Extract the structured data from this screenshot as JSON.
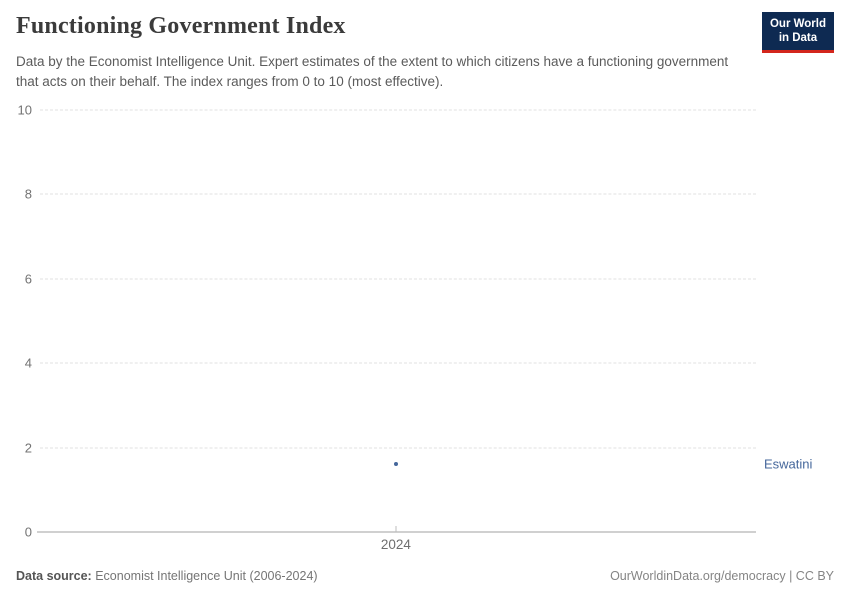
{
  "header": {
    "title": "Functioning Government Index",
    "subtitle": "Data by the Economist Intelligence Unit. Expert estimates of the extent to which citizens have a functioning government that acts on their behalf. The index ranges from 0 to 10 (most effective).",
    "logo_line1": "Our World",
    "logo_line2": "in Data"
  },
  "chart_data": {
    "type": "scatter",
    "title": "Functioning Government Index",
    "series": [
      {
        "name": "Eswatini",
        "x": [
          2024
        ],
        "values": [
          1.6
        ],
        "color": "#45679b"
      }
    ],
    "x": [
      2024
    ],
    "xticks": [
      2024
    ],
    "xtick_fracs": [
      0.497
    ],
    "yticks": [
      0,
      2,
      4,
      6,
      8,
      10
    ],
    "ylim": [
      0,
      10
    ],
    "grid": true,
    "xlabel": "",
    "ylabel": "",
    "legend_position": "right-of-point"
  },
  "footer": {
    "source_label": "Data source:",
    "source_text": " Economist Intelligence Unit (2006-2024)",
    "credit": "OurWorldinData.org/democracy | CC BY"
  },
  "colors": {
    "series_blue": "#45679b",
    "logo_navy": "#0e2a52",
    "logo_red": "#d3261c",
    "gridline": "#e0e0e0",
    "axis_line": "#a0a0a0",
    "tick_text": "#737373"
  }
}
